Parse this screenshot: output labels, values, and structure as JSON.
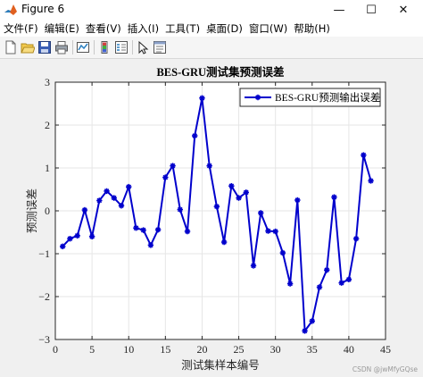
{
  "window": {
    "title": "Figure 6",
    "minimize_glyph": "—",
    "maximize_glyph": "☐",
    "close_glyph": "✕"
  },
  "menu": [
    "文件(F)",
    "编辑(E)",
    "查看(V)",
    "插入(I)",
    "工具(T)",
    "桌面(D)",
    "窗口(W)",
    "帮助(H)"
  ],
  "toolbar": {
    "icons": [
      "new-figure-icon",
      "open-file-icon",
      "save-icon",
      "print-icon",
      "link-plot-icon",
      "insert-colorbar-icon",
      "insert-legend-icon",
      "property-editor-icon"
    ]
  },
  "colors": {
    "series": "#0000cc",
    "window_bg": "#f0f0f0",
    "axes_bg": "#ffffff",
    "grid": "#e6e6e6"
  },
  "watermark": "CSDN @jwMfyGQse",
  "chart_data": {
    "type": "line",
    "title": "BES-GRU测试集预测误差",
    "xlabel": "测试集样本编号",
    "ylabel": "预测误差",
    "xlim": [
      0,
      45
    ],
    "ylim": [
      -3,
      3
    ],
    "xticks": [
      0,
      5,
      10,
      15,
      20,
      25,
      30,
      35,
      40,
      45
    ],
    "yticks": [
      -3,
      -2,
      -1,
      0,
      1,
      2,
      3
    ],
    "grid": true,
    "legend_position": "top-right",
    "marker": "asterisk",
    "series": [
      {
        "name": "BES-GRU预测输出误差",
        "x": [
          1,
          2,
          3,
          4,
          5,
          6,
          7,
          8,
          9,
          10,
          11,
          12,
          13,
          14,
          15,
          16,
          17,
          18,
          19,
          20,
          21,
          22,
          23,
          24,
          25,
          26,
          27,
          28,
          29,
          30,
          31,
          32,
          33,
          34,
          35,
          36,
          37,
          38,
          39,
          40,
          41,
          42,
          43
        ],
        "y": [
          -0.83,
          -0.65,
          -0.58,
          0.02,
          -0.6,
          0.24,
          0.46,
          0.3,
          0.12,
          0.56,
          -0.4,
          -0.45,
          -0.8,
          -0.44,
          0.78,
          1.05,
          0.03,
          -0.48,
          1.75,
          2.63,
          1.05,
          0.1,
          -0.73,
          0.58,
          0.3,
          0.43,
          -1.28,
          -0.05,
          -0.47,
          -0.48,
          -0.98,
          -1.7,
          0.25,
          -2.8,
          -2.57,
          -1.78,
          -1.38,
          0.32,
          -1.68,
          -1.6,
          -0.65,
          1.3,
          0.7
        ]
      }
    ]
  }
}
